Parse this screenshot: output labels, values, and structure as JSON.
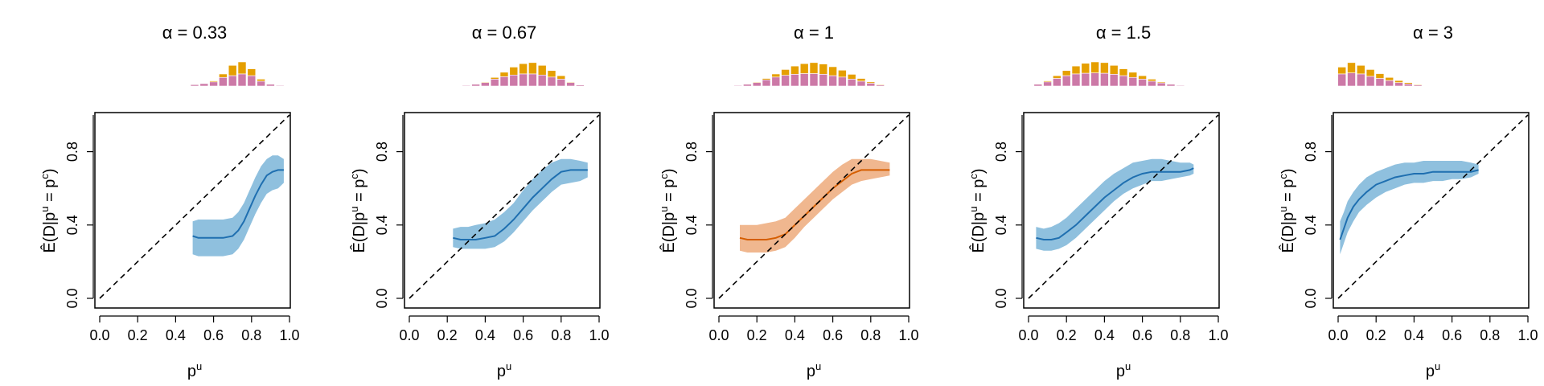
{
  "chart_data": [
    {
      "type": "line",
      "title": "α = 0.33",
      "xlabel": "p^u",
      "ylabel": "Ê(D|p^u = p^c)",
      "xlim": [
        0,
        1
      ],
      "ylim": [
        0,
        1
      ],
      "grid": false,
      "xticks": [
        "0.0",
        "0.2",
        "0.4",
        "0.6",
        "0.8",
        "1.0"
      ],
      "yticks": [
        "0.0",
        "0.4",
        "0.8"
      ],
      "diagonal": true,
      "line_color": "#1f6fb0",
      "band_color": "#8fc0de",
      "series": [
        {
          "x": [
            0.49,
            0.52,
            0.55,
            0.6,
            0.65,
            0.7,
            0.73,
            0.76,
            0.79,
            0.82,
            0.85,
            0.88,
            0.91,
            0.94,
            0.97
          ],
          "y": [
            0.34,
            0.33,
            0.33,
            0.33,
            0.33,
            0.34,
            0.37,
            0.42,
            0.49,
            0.56,
            0.62,
            0.67,
            0.69,
            0.7,
            0.7
          ],
          "lo": [
            0.24,
            0.23,
            0.23,
            0.23,
            0.23,
            0.24,
            0.27,
            0.32,
            0.39,
            0.46,
            0.52,
            0.57,
            0.59,
            0.6,
            0.63
          ],
          "hi": [
            0.42,
            0.43,
            0.43,
            0.43,
            0.43,
            0.44,
            0.47,
            0.52,
            0.59,
            0.66,
            0.72,
            0.76,
            0.78,
            0.78,
            0.76
          ]
        }
      ],
      "histogram": {
        "bins": [
          0.5,
          0.55,
          0.6,
          0.65,
          0.7,
          0.75,
          0.8,
          0.85,
          0.9,
          0.95
        ],
        "top": [
          0.05,
          0.08,
          0.15,
          0.35,
          0.6,
          0.7,
          0.5,
          0.2,
          0.06,
          0.02
        ],
        "bottom": [
          0.04,
          0.07,
          0.12,
          0.25,
          0.3,
          0.35,
          0.3,
          0.14,
          0.05,
          0.02
        ],
        "top_color": "#e59f00",
        "bottom_color": "#cc79a7"
      }
    },
    {
      "type": "line",
      "title": "α = 0.67",
      "xlabel": "p^u",
      "ylabel": "Ê(D|p^u = p^c)",
      "xlim": [
        0,
        1
      ],
      "ylim": [
        0,
        1
      ],
      "grid": false,
      "xticks": [
        "0.0",
        "0.2",
        "0.4",
        "0.6",
        "0.8",
        "1.0"
      ],
      "yticks": [
        "0.0",
        "0.4",
        "0.8"
      ],
      "diagonal": true,
      "line_color": "#1f6fb0",
      "band_color": "#8fc0de",
      "series": [
        {
          "x": [
            0.23,
            0.27,
            0.31,
            0.35,
            0.4,
            0.45,
            0.5,
            0.55,
            0.6,
            0.65,
            0.7,
            0.75,
            0.8,
            0.85,
            0.9,
            0.94
          ],
          "y": [
            0.33,
            0.32,
            0.32,
            0.32,
            0.33,
            0.34,
            0.38,
            0.43,
            0.49,
            0.55,
            0.6,
            0.65,
            0.69,
            0.7,
            0.7,
            0.7
          ],
          "lo": [
            0.28,
            0.27,
            0.27,
            0.27,
            0.27,
            0.28,
            0.31,
            0.36,
            0.42,
            0.48,
            0.53,
            0.58,
            0.62,
            0.63,
            0.64,
            0.66
          ],
          "hi": [
            0.38,
            0.39,
            0.39,
            0.4,
            0.41,
            0.43,
            0.47,
            0.52,
            0.59,
            0.65,
            0.7,
            0.74,
            0.76,
            0.76,
            0.75,
            0.74
          ]
        }
      ],
      "histogram": {
        "bins": [
          0.3,
          0.35,
          0.4,
          0.45,
          0.5,
          0.55,
          0.6,
          0.65,
          0.7,
          0.75,
          0.8,
          0.85,
          0.9
        ],
        "top": [
          0.03,
          0.06,
          0.12,
          0.25,
          0.4,
          0.55,
          0.65,
          0.68,
          0.6,
          0.45,
          0.3,
          0.12,
          0.04
        ],
        "bottom": [
          0.02,
          0.05,
          0.1,
          0.2,
          0.27,
          0.32,
          0.35,
          0.35,
          0.32,
          0.26,
          0.2,
          0.1,
          0.03
        ],
        "top_color": "#e59f00",
        "bottom_color": "#cc79a7"
      }
    },
    {
      "type": "line",
      "title": "α = 1",
      "xlabel": "p^u",
      "ylabel": "Ê(D|p^u = p^c)",
      "xlim": [
        0,
        1
      ],
      "ylim": [
        0,
        1
      ],
      "grid": false,
      "xticks": [
        "0.0",
        "0.2",
        "0.4",
        "0.6",
        "0.8",
        "1.0"
      ],
      "yticks": [
        "0.0",
        "0.4",
        "0.8"
      ],
      "diagonal": true,
      "line_color": "#d55e00",
      "band_color": "#f0b78f",
      "series": [
        {
          "x": [
            0.11,
            0.15,
            0.2,
            0.25,
            0.3,
            0.35,
            0.4,
            0.45,
            0.5,
            0.55,
            0.6,
            0.65,
            0.7,
            0.75,
            0.8,
            0.85,
            0.9
          ],
          "y": [
            0.33,
            0.32,
            0.32,
            0.32,
            0.33,
            0.35,
            0.4,
            0.45,
            0.5,
            0.55,
            0.6,
            0.64,
            0.68,
            0.7,
            0.7,
            0.7,
            0.7
          ],
          "lo": [
            0.26,
            0.25,
            0.25,
            0.25,
            0.26,
            0.28,
            0.33,
            0.39,
            0.44,
            0.49,
            0.54,
            0.58,
            0.62,
            0.64,
            0.65,
            0.66,
            0.67
          ],
          "hi": [
            0.4,
            0.4,
            0.4,
            0.41,
            0.42,
            0.44,
            0.49,
            0.54,
            0.59,
            0.64,
            0.69,
            0.73,
            0.76,
            0.76,
            0.76,
            0.75,
            0.74
          ]
        }
      ],
      "histogram": {
        "bins": [
          0.1,
          0.15,
          0.2,
          0.25,
          0.3,
          0.35,
          0.4,
          0.45,
          0.5,
          0.55,
          0.6,
          0.65,
          0.7,
          0.75,
          0.8,
          0.85
        ],
        "top": [
          0.03,
          0.06,
          0.12,
          0.22,
          0.35,
          0.48,
          0.58,
          0.65,
          0.68,
          0.64,
          0.56,
          0.46,
          0.34,
          0.22,
          0.12,
          0.05
        ],
        "bottom": [
          0.02,
          0.05,
          0.1,
          0.18,
          0.26,
          0.31,
          0.34,
          0.36,
          0.36,
          0.34,
          0.3,
          0.26,
          0.2,
          0.14,
          0.08,
          0.03
        ],
        "top_color": "#e59f00",
        "bottom_color": "#cc79a7"
      }
    },
    {
      "type": "line",
      "title": "α = 1.5",
      "xlabel": "p^u",
      "ylabel": "Ê(D|p^u = p^c)",
      "xlim": [
        0,
        1
      ],
      "ylim": [
        0,
        1
      ],
      "grid": false,
      "xticks": [
        "0.0",
        "0.2",
        "0.4",
        "0.6",
        "0.8",
        "1.0"
      ],
      "yticks": [
        "0.0",
        "0.4",
        "0.8"
      ],
      "diagonal": true,
      "line_color": "#1f6fb0",
      "band_color": "#8fc0de",
      "series": [
        {
          "x": [
            0.04,
            0.08,
            0.12,
            0.16,
            0.2,
            0.25,
            0.3,
            0.35,
            0.4,
            0.45,
            0.5,
            0.55,
            0.6,
            0.65,
            0.7,
            0.75,
            0.8,
            0.85,
            0.87
          ],
          "y": [
            0.33,
            0.32,
            0.32,
            0.33,
            0.36,
            0.4,
            0.45,
            0.5,
            0.55,
            0.59,
            0.63,
            0.66,
            0.68,
            0.69,
            0.69,
            0.69,
            0.69,
            0.7,
            0.71
          ],
          "lo": [
            0.27,
            0.26,
            0.26,
            0.27,
            0.29,
            0.33,
            0.38,
            0.43,
            0.48,
            0.53,
            0.57,
            0.6,
            0.62,
            0.64,
            0.64,
            0.65,
            0.66,
            0.67,
            0.68
          ],
          "hi": [
            0.39,
            0.38,
            0.39,
            0.41,
            0.44,
            0.49,
            0.54,
            0.59,
            0.64,
            0.68,
            0.71,
            0.74,
            0.75,
            0.76,
            0.76,
            0.75,
            0.74,
            0.74,
            0.73
          ]
        }
      ],
      "histogram": {
        "bins": [
          0.05,
          0.1,
          0.15,
          0.2,
          0.25,
          0.3,
          0.35,
          0.4,
          0.45,
          0.5,
          0.55,
          0.6,
          0.65,
          0.7,
          0.75,
          0.8
        ],
        "top": [
          0.06,
          0.15,
          0.3,
          0.45,
          0.58,
          0.66,
          0.7,
          0.68,
          0.6,
          0.5,
          0.4,
          0.3,
          0.2,
          0.12,
          0.06,
          0.02
        ],
        "bottom": [
          0.05,
          0.12,
          0.22,
          0.3,
          0.35,
          0.37,
          0.38,
          0.37,
          0.34,
          0.3,
          0.25,
          0.2,
          0.14,
          0.09,
          0.05,
          0.02
        ],
        "top_color": "#e59f00",
        "bottom_color": "#cc79a7"
      }
    },
    {
      "type": "line",
      "title": "α = 3",
      "xlabel": "p^u",
      "ylabel": "Ê(D|p^u = p^c)",
      "xlim": [
        0,
        1
      ],
      "ylim": [
        0,
        1
      ],
      "grid": false,
      "xticks": [
        "0.0",
        "0.2",
        "0.4",
        "0.6",
        "0.8",
        "1.0"
      ],
      "yticks": [
        "0.0",
        "0.4",
        "0.8"
      ],
      "diagonal": true,
      "line_color": "#1f6fb0",
      "band_color": "#8fc0de",
      "series": [
        {
          "x": [
            0.01,
            0.03,
            0.05,
            0.08,
            0.11,
            0.15,
            0.2,
            0.25,
            0.3,
            0.35,
            0.4,
            0.45,
            0.5,
            0.55,
            0.6,
            0.65,
            0.7,
            0.74
          ],
          "y": [
            0.32,
            0.38,
            0.44,
            0.5,
            0.54,
            0.58,
            0.62,
            0.64,
            0.66,
            0.67,
            0.68,
            0.68,
            0.69,
            0.69,
            0.69,
            0.69,
            0.69,
            0.7
          ],
          "lo": [
            0.24,
            0.3,
            0.36,
            0.42,
            0.47,
            0.51,
            0.55,
            0.58,
            0.6,
            0.62,
            0.63,
            0.63,
            0.64,
            0.64,
            0.65,
            0.65,
            0.66,
            0.68
          ],
          "hi": [
            0.42,
            0.47,
            0.53,
            0.58,
            0.62,
            0.66,
            0.69,
            0.71,
            0.73,
            0.74,
            0.74,
            0.75,
            0.75,
            0.75,
            0.75,
            0.75,
            0.74,
            0.73
          ]
        }
      ],
      "histogram": {
        "bins": [
          0.02,
          0.07,
          0.12,
          0.17,
          0.22,
          0.27,
          0.32,
          0.37,
          0.42,
          0.47,
          0.52
        ],
        "top": [
          0.55,
          0.68,
          0.6,
          0.48,
          0.36,
          0.25,
          0.16,
          0.1,
          0.05,
          0.02,
          0.01
        ],
        "bottom": [
          0.35,
          0.38,
          0.35,
          0.28,
          0.22,
          0.16,
          0.1,
          0.06,
          0.03,
          0.01,
          0.005
        ],
        "top_color": "#e59f00",
        "bottom_color": "#cc79a7"
      }
    }
  ]
}
